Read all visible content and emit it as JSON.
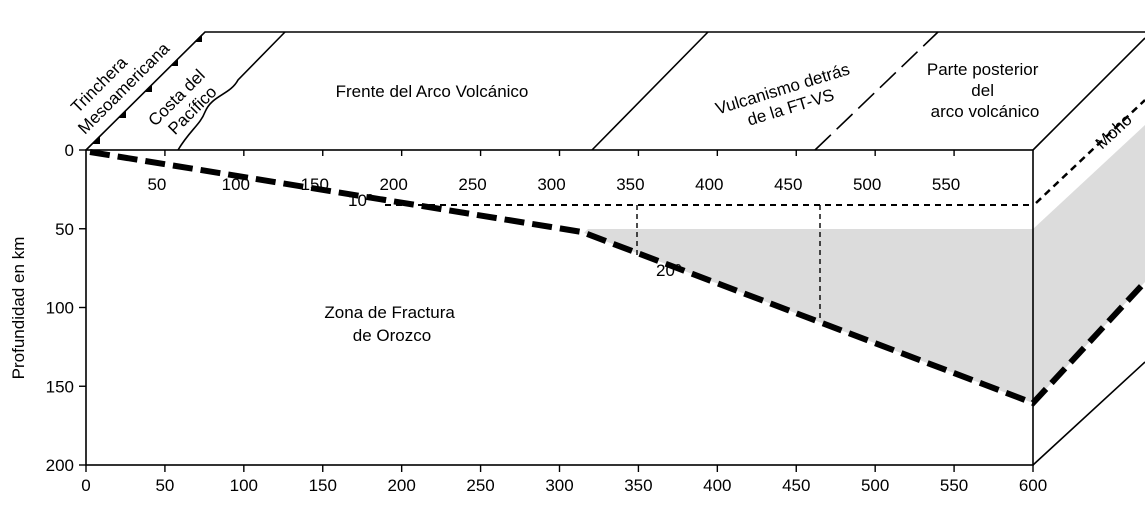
{
  "top_labels": {
    "trench": [
      "Trinchera",
      "Mesoamericana"
    ],
    "coast": [
      "Costa del",
      "Pacífico"
    ],
    "front": "Frente del Arco Volcánico",
    "behind": [
      "Vulcanismo detrás",
      "de la FT-VS"
    ],
    "rear": [
      "Parte posterior",
      "del",
      "arco volcánico"
    ]
  },
  "y_axis": {
    "label": "Profundidad en km",
    "ticks": [
      0,
      50,
      100,
      150,
      200
    ],
    "range": [
      0,
      200
    ]
  },
  "x_axis_bottom": {
    "ticks": [
      0,
      50,
      100,
      150,
      200,
      250,
      300,
      350,
      400,
      450,
      500,
      550,
      600
    ],
    "range": [
      0,
      600
    ]
  },
  "x_axis_inner": {
    "ticks": [
      50,
      100,
      150,
      200,
      250,
      300,
      350,
      400,
      450,
      500,
      550
    ]
  },
  "annotations": {
    "angle_1": "10º",
    "angle_2": "20º",
    "zone": [
      "Zona de Fractura",
      "de Orozco"
    ],
    "moho": "Moho"
  }
}
